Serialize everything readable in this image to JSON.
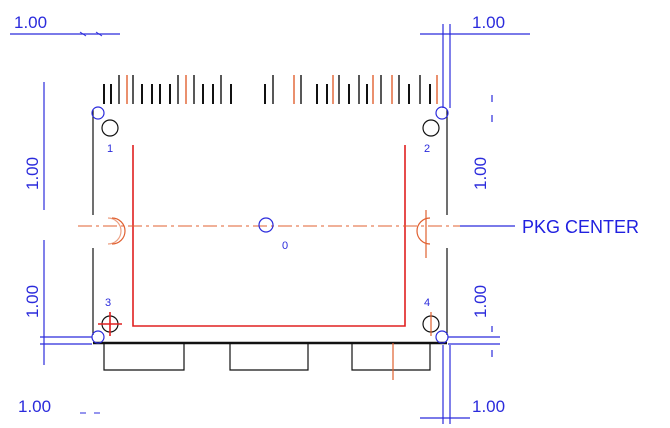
{
  "dimensions": {
    "top_left": "1.00",
    "top_right": "1.00",
    "left_upper": "1.00",
    "left_lower": "1.00",
    "right_upper": "1.00",
    "right_lower": "1.00",
    "bottom_left": "1.00",
    "bottom_right": "1.00"
  },
  "points": {
    "p0": "0",
    "p1": "1",
    "p2": "2",
    "p3": "3",
    "p4": "4"
  },
  "pkg_center_label": "PKG CENTER",
  "colors": {
    "dimension": "#2b2bdc",
    "outline": "#e02020",
    "centerline": "#e06030",
    "body": "#111111"
  }
}
